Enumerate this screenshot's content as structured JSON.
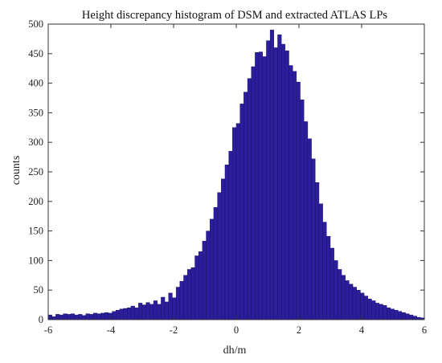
{
  "chart_data": {
    "type": "bar",
    "title": "Height discrepancy histogram of DSM and extracted ATLAS LPs",
    "xlabel": "dh/m",
    "ylabel": "counts",
    "xlim": [
      -6,
      6
    ],
    "ylim": [
      0,
      500
    ],
    "x_ticks": [
      -6,
      -4,
      -2,
      0,
      2,
      4,
      6
    ],
    "y_ticks": [
      0,
      50,
      100,
      150,
      200,
      250,
      300,
      350,
      400,
      450,
      500
    ],
    "bin_width": 0.12,
    "bin_start": -6,
    "bar_color": "#2b1d9c",
    "bar_edge_color": "#15105a",
    "grid": false,
    "values": [
      8,
      5,
      9,
      8,
      10,
      9,
      10,
      8,
      9,
      7,
      10,
      9,
      11,
      10,
      11,
      12,
      11,
      14,
      16,
      18,
      19,
      20,
      23,
      20,
      28,
      25,
      29,
      26,
      32,
      26,
      38,
      30,
      45,
      37,
      55,
      65,
      75,
      85,
      88,
      108,
      115,
      133,
      150,
      170,
      190,
      215,
      238,
      262,
      285,
      325,
      332,
      365,
      385,
      408,
      428,
      452,
      453,
      445,
      472,
      490,
      460,
      482,
      466,
      455,
      430,
      420,
      402,
      372,
      335,
      306,
      272,
      232,
      196,
      165,
      141,
      121,
      100,
      85,
      75,
      66,
      60,
      55,
      50,
      45,
      40,
      35,
      32,
      28,
      26,
      24,
      20,
      18,
      16,
      14,
      12,
      10,
      8,
      6,
      4,
      3
    ]
  }
}
